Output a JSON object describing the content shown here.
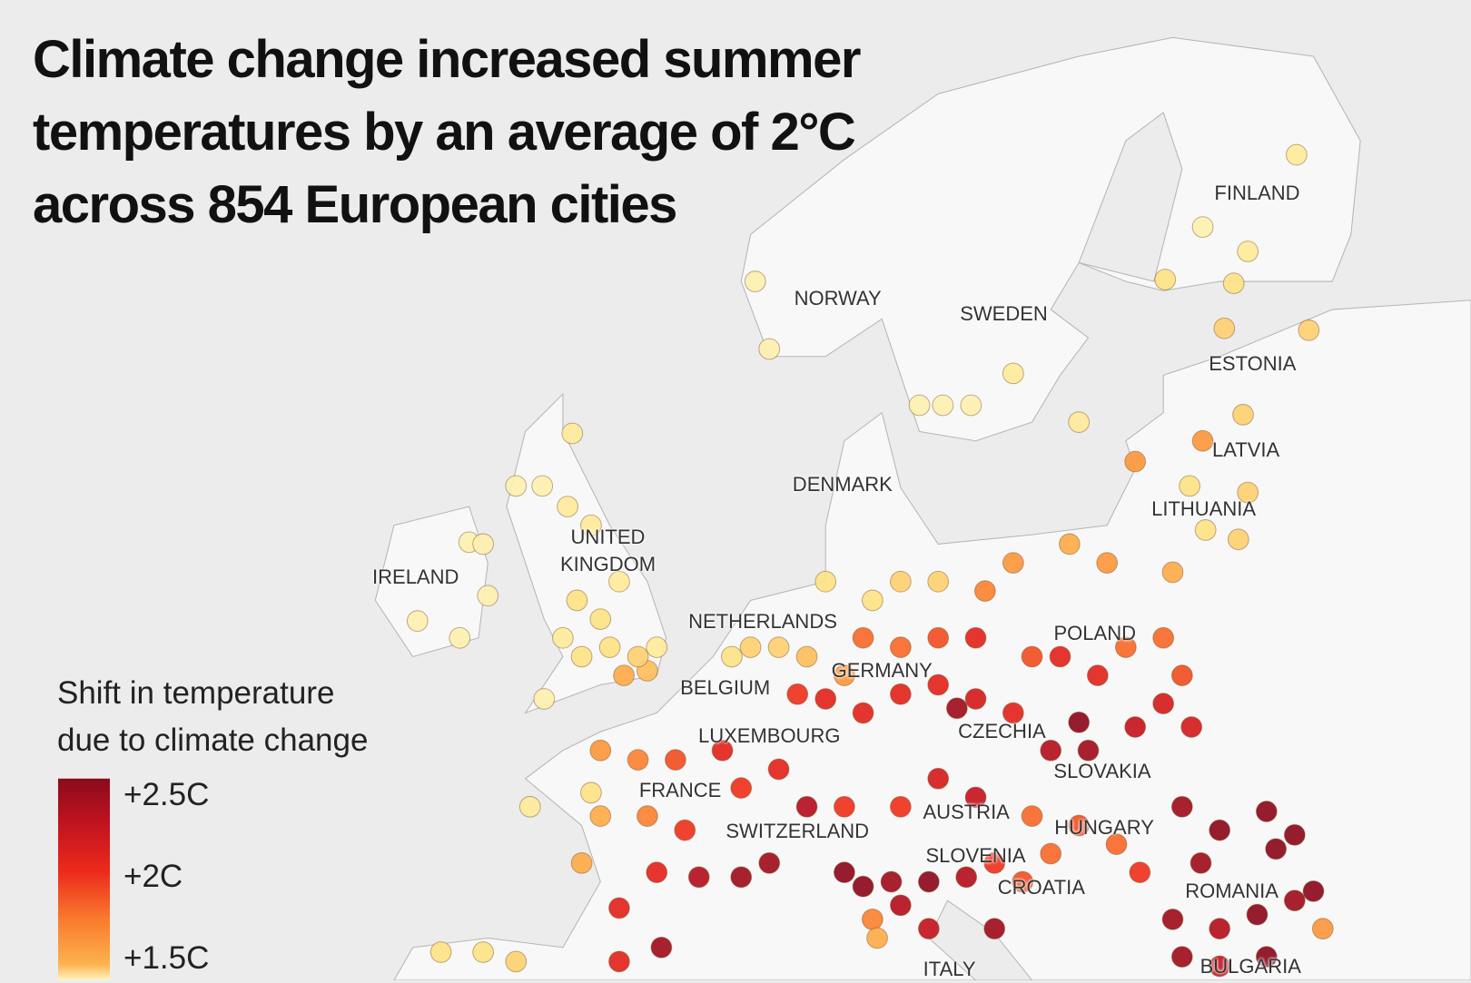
{
  "title": [
    "Climate change increased summer",
    "temperatures by an average of 2°C",
    "across 854 European cities"
  ],
  "legend": {
    "title": [
      "Shift in temperature",
      "due to climate change"
    ],
    "ticks": [
      {
        "value": 2.5,
        "label": "+2.5C"
      },
      {
        "value": 2,
        "label": "+2C"
      },
      {
        "value": 1.5,
        "label": "+1.5C"
      }
    ],
    "clim": [
      0.9,
      2.6
    ],
    "colors": [
      "#fff6c4",
      "#fde58a",
      "#fdb24e",
      "#f9782d",
      "#ec2a1c",
      "#c3141f",
      "#8c0a1c"
    ]
  },
  "countries": [
    "FINLAND",
    "NORWAY",
    "SWEDEN",
    "ESTONIA",
    "LATVIA",
    "DENMARK",
    "LITHUANIA",
    "UNITED KINGDOM",
    "IRELAND",
    "NETHERLANDS",
    "POLAND",
    "GERMANY",
    "BELGIUM",
    "LUXEMBOURG",
    "CZECHIA",
    "SLOVAKIA",
    "FRANCE",
    "AUSTRIA",
    "HUNGARY",
    "SWITZERLAND",
    "SLOVENIA",
    "CROATIA",
    "ROMANIA",
    "ITALY",
    "BULGARIA"
  ],
  "cities": {
    "values": [
      1.1,
      1.0,
      1.1,
      1.2,
      1.2,
      1.3,
      1.3,
      1.0,
      1.0,
      1.1,
      1.0,
      1.0,
      1.0,
      1.1,
      1.3,
      1.6,
      1.6,
      1.2,
      1.3,
      1.2,
      1.3,
      1.1,
      1.0,
      1.0,
      1.1,
      1.1,
      1.0,
      1.0,
      1.0,
      1.0,
      1.2,
      1.2,
      1.1,
      1.1,
      1.2,
      1.2,
      1.5,
      1.4,
      1.3,
      1.1,
      1.0,
      1.0,
      1.3,
      1.3,
      1.4,
      1.2,
      1.6,
      1.2,
      1.3,
      1.3,
      1.7,
      1.2,
      1.6,
      1.5,
      1.6,
      1.5,
      1.8,
      1.8,
      1.9,
      2.1,
      1.9,
      2.1,
      2.1,
      1.8,
      1.8,
      1.9,
      2.0,
      2.1,
      2.1,
      2.1,
      2.1,
      2.2,
      2.1,
      2.5,
      2.6,
      2.5,
      2.4,
      2.3,
      2.2,
      2.2,
      1.6,
      1.7,
      1.9,
      2.1,
      2.0,
      2.1,
      1.7,
      2.0,
      1.5,
      1.5,
      2.1,
      2.1,
      2.4,
      2.5,
      2.1,
      2.4,
      2.0,
      2.0,
      2.2,
      2.3,
      2.5,
      2.5,
      2.6,
      2.6,
      2.5,
      2.6,
      2.4,
      2.5,
      2.4,
      2.3,
      1.7,
      1.5,
      1.8,
      1.9,
      1.8,
      1.8,
      2.0,
      2.0,
      1.9,
      2.5,
      2.6,
      2.6,
      2.6,
      2.5,
      2.6,
      2.6,
      2.5,
      2.4,
      2.6,
      2.5,
      1.6,
      2.5,
      2.3,
      2.6,
      1.2,
      1.2,
      1.3,
      1.1,
      1.2
    ]
  }
}
